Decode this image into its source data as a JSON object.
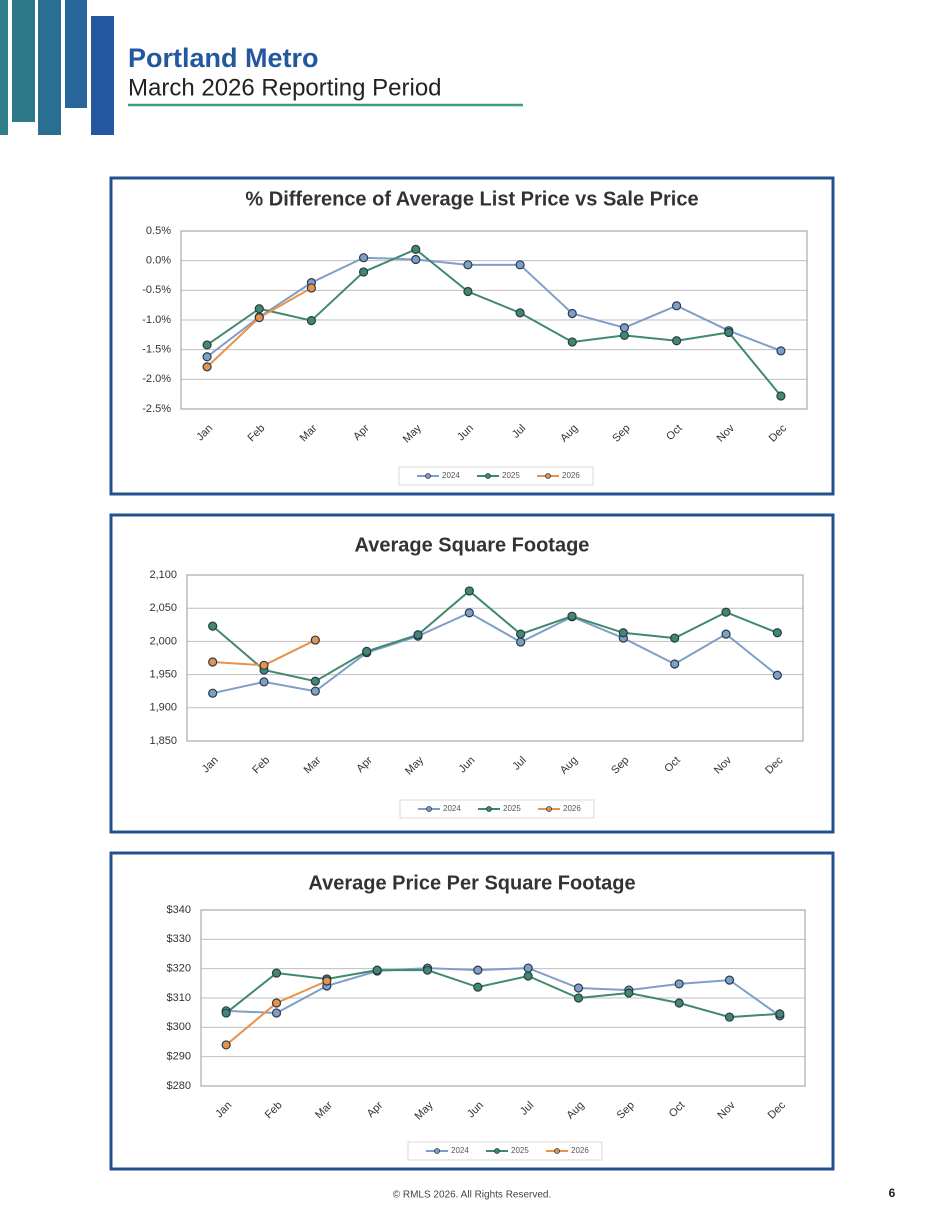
{
  "header": {
    "title": "Portland Metro",
    "subtitle": "March 2026 Reporting Period"
  },
  "chart_data": [
    {
      "type": "line",
      "title": "% Difference of Average List Price vs Sale Price",
      "categories": [
        "Jan",
        "Feb",
        "Mar",
        "Apr",
        "May",
        "Jun",
        "Jul",
        "Aug",
        "Sep",
        "Oct",
        "Nov",
        "Dec"
      ],
      "ylim": [
        -2.5,
        0.5
      ],
      "yticks": [
        {
          "value": 0.5,
          "label": "0.5%"
        },
        {
          "value": 0.0,
          "label": "0.0%"
        },
        {
          "value": -0.5,
          "label": "-0.5%"
        },
        {
          "value": -1.0,
          "label": "-1.0%"
        },
        {
          "value": -1.5,
          "label": "-1.5%"
        },
        {
          "value": -2.0,
          "label": "-2.0%"
        },
        {
          "value": -2.5,
          "label": "-2.5%"
        }
      ],
      "grid": true,
      "legend": "bottom",
      "series": [
        {
          "name": "2024",
          "color": "#7f9fc8",
          "values": [
            -1.62,
            -0.95,
            -0.37,
            0.05,
            0.02,
            -0.07,
            -0.07,
            -0.89,
            -1.13,
            -0.76,
            -1.18,
            -1.52
          ]
        },
        {
          "name": "2025",
          "color": "#3f8a6e",
          "values": [
            -1.42,
            -0.81,
            -1.01,
            -0.19,
            0.19,
            -0.52,
            -0.88,
            -1.37,
            -1.26,
            -1.35,
            -1.21,
            -2.28
          ]
        },
        {
          "name": "2026",
          "color": "#e8924a",
          "values": [
            -1.79,
            -0.96,
            -0.46,
            null,
            null,
            null,
            null,
            null,
            null,
            null,
            null,
            null
          ]
        }
      ]
    },
    {
      "type": "line",
      "title": "Average Square Footage",
      "categories": [
        "Jan",
        "Feb",
        "Mar",
        "Apr",
        "May",
        "Jun",
        "Jul",
        "Aug",
        "Sep",
        "Oct",
        "Nov",
        "Dec"
      ],
      "ylim": [
        1850,
        2100
      ],
      "yticks": [
        {
          "value": 2100,
          "label": "2,100"
        },
        {
          "value": 2050,
          "label": "2,050"
        },
        {
          "value": 2000,
          "label": "2,000"
        },
        {
          "value": 1950,
          "label": "1,950"
        },
        {
          "value": 1900,
          "label": "1,900"
        },
        {
          "value": 1850,
          "label": "1,850"
        }
      ],
      "grid": true,
      "legend": "bottom",
      "series": [
        {
          "name": "2024",
          "color": "#7f9fc8",
          "values": [
            1922,
            1939,
            1925,
            1983,
            2008,
            2043,
            1999,
            2037,
            2005,
            1966,
            2011,
            1949
          ]
        },
        {
          "name": "2025",
          "color": "#3f8a6e",
          "values": [
            2023,
            1957,
            1940,
            1985,
            2010,
            2076,
            2011,
            2038,
            2013,
            2005,
            2044,
            2013
          ]
        },
        {
          "name": "2026",
          "color": "#e8924a",
          "values": [
            1969,
            1964,
            2002,
            null,
            null,
            null,
            null,
            null,
            null,
            null,
            null,
            null
          ]
        }
      ]
    },
    {
      "type": "line",
      "title": "Average Price Per Square Footage",
      "categories": [
        "Jan",
        "Feb",
        "Mar",
        "Apr",
        "May",
        "Jun",
        "Jul",
        "Aug",
        "Sep",
        "Oct",
        "Nov",
        "Dec"
      ],
      "ylim": [
        280,
        340
      ],
      "yticks": [
        {
          "value": 340,
          "label": "$340"
        },
        {
          "value": 330,
          "label": "$330"
        },
        {
          "value": 320,
          "label": "$320"
        },
        {
          "value": 310,
          "label": "$310"
        },
        {
          "value": 300,
          "label": "$300"
        },
        {
          "value": 290,
          "label": "$290"
        },
        {
          "value": 280,
          "label": "$280"
        }
      ],
      "grid": true,
      "legend": "bottom",
      "series": [
        {
          "name": "2024",
          "color": "#7f9fc8",
          "values": [
            305.6,
            304.9,
            314.1,
            319.2,
            320.2,
            319.5,
            320.2,
            313.4,
            312.7,
            314.8,
            316.1,
            303.9
          ]
        },
        {
          "name": "2025",
          "color": "#3f8a6e",
          "values": [
            304.9,
            318.5,
            316.5,
            319.5,
            319.5,
            313.7,
            317.5,
            310.0,
            311.7,
            308.3,
            303.5,
            304.6
          ]
        },
        {
          "name": "2026",
          "color": "#e8924a",
          "values": [
            294.0,
            308.3,
            315.8,
            null,
            null,
            null,
            null,
            null,
            null,
            null,
            null,
            null
          ]
        }
      ]
    }
  ],
  "footer": {
    "copyright": "© RMLS 2026. All Rights Reserved.",
    "page": "6"
  }
}
